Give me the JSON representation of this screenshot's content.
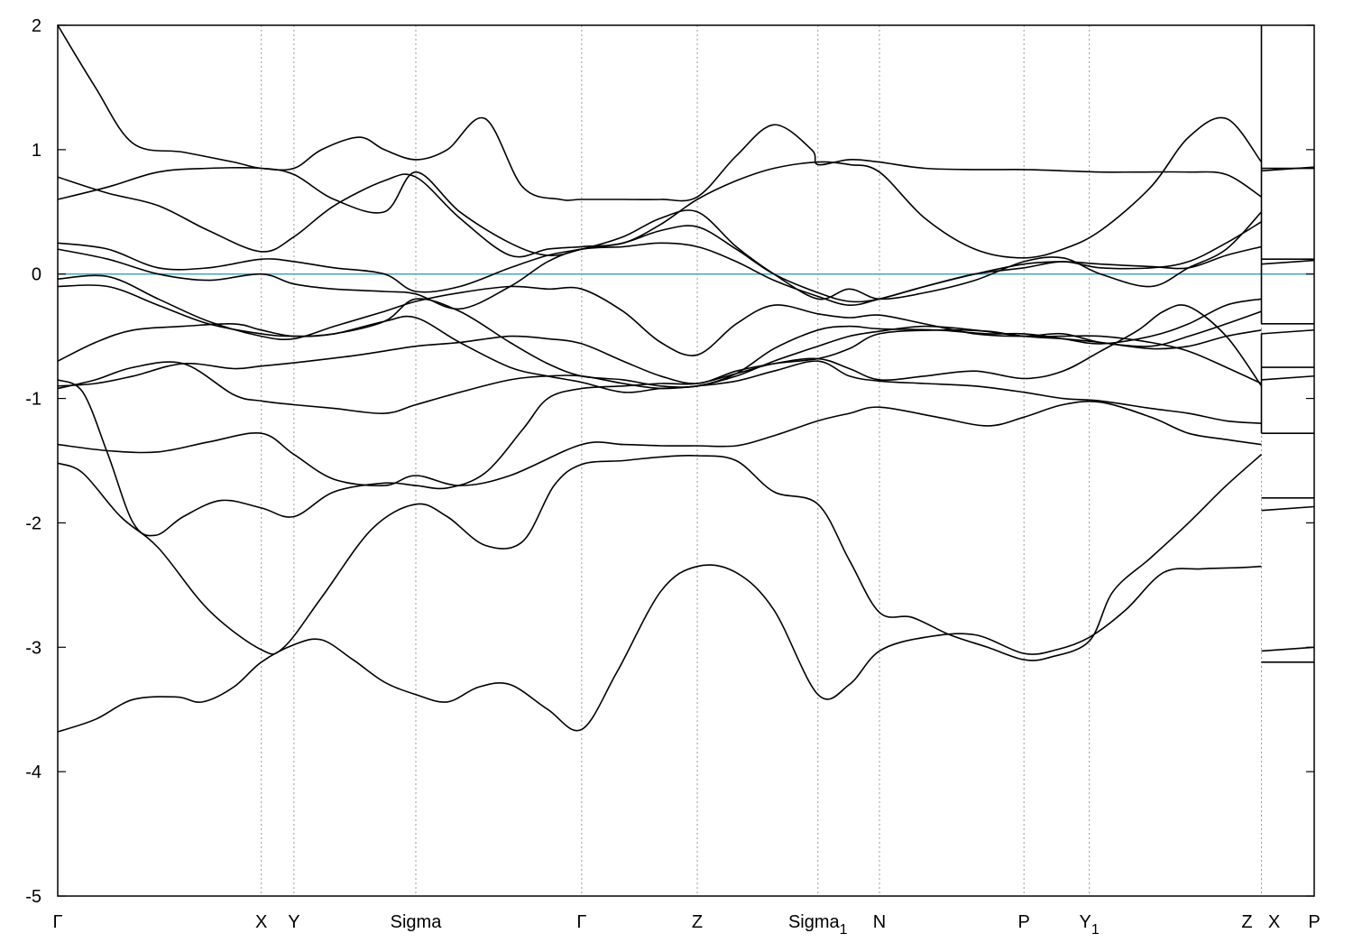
{
  "chart_data": {
    "type": "line",
    "title": "",
    "xlabel": "",
    "ylabel": "",
    "ylim": [
      -5,
      2
    ],
    "y_ticks": [
      "2",
      "1",
      "0",
      "-1",
      "-2",
      "-3",
      "-4",
      "-5"
    ],
    "y_tick_values": [
      2,
      1,
      0,
      -1,
      -2,
      -3,
      -4,
      -5
    ],
    "x_range": [
      0,
      1
    ],
    "k_points": [
      {
        "label": "Γ",
        "sub": "",
        "x": 0.0
      },
      {
        "label": "X",
        "sub": "",
        "x": 0.162
      },
      {
        "label": "Y",
        "sub": "",
        "x": 0.188
      },
      {
        "label": "Sigma",
        "sub": "",
        "x": 0.285
      },
      {
        "label": "Γ",
        "sub": "",
        "x": 0.417
      },
      {
        "label": "Z",
        "sub": "",
        "x": 0.509
      },
      {
        "label": "Sigma",
        "sub": "1",
        "x": 0.605
      },
      {
        "label": "N",
        "sub": "",
        "x": 0.654
      },
      {
        "label": "P",
        "sub": "",
        "x": 0.769
      },
      {
        "label": "Y",
        "sub": "1",
        "x": 0.821
      },
      {
        "label": "Z",
        "sub": "",
        "x": 0.958
      },
      {
        "label": "X",
        "sub": "",
        "x": 0.958
      },
      {
        "label": "P",
        "sub": "",
        "x": 1.0
      }
    ],
    "fermi_level": 0,
    "grid": "vertical dotted lines at k-points",
    "colors": {
      "bands": "#000000",
      "fermi": "#4aa8c0",
      "grid": "#999999"
    },
    "series": [
      {
        "x": [
          0.0,
          0.03,
          0.06,
          0.095,
          0.115,
          0.14,
          0.162,
          0.188,
          0.21,
          0.235,
          0.26,
          0.285,
          0.31,
          0.335,
          0.36,
          0.39,
          0.417,
          0.445,
          0.48,
          0.509,
          0.54,
          0.57,
          0.605,
          0.63,
          0.654,
          0.69,
          0.73,
          0.769,
          0.795,
          0.821,
          0.85,
          0.88,
          0.91,
          0.94,
          0.958
        ],
        "y": [
          -3.68,
          -3.58,
          -3.42,
          -3.4,
          -3.44,
          -3.32,
          -3.12,
          -2.98,
          -2.94,
          -3.1,
          -3.28,
          -3.38,
          -3.44,
          -3.32,
          -3.3,
          -3.5,
          -3.66,
          -3.2,
          -2.55,
          -2.35,
          -2.4,
          -2.7,
          -3.38,
          -3.3,
          -3.03,
          -2.92,
          -2.9,
          -3.05,
          -3.02,
          -2.92,
          -2.7,
          -2.4,
          -2.37,
          -2.36,
          -2.35
        ]
      },
      {
        "x": [
          0.0,
          0.02,
          0.05,
          0.08,
          0.12,
          0.162,
          0.18,
          0.21,
          0.25,
          0.285,
          0.31,
          0.34,
          0.37,
          0.395,
          0.417,
          0.45,
          0.48,
          0.509,
          0.54,
          0.57,
          0.605,
          0.63,
          0.654,
          0.68,
          0.71,
          0.74,
          0.769,
          0.79,
          0.821,
          0.84,
          0.87,
          0.9,
          0.93,
          0.958
        ],
        "y": [
          -1.52,
          -1.6,
          -1.95,
          -2.2,
          -2.7,
          -3.02,
          -3.0,
          -2.6,
          -2.05,
          -1.85,
          -1.95,
          -2.18,
          -2.15,
          -1.7,
          -1.53,
          -1.5,
          -1.47,
          -1.46,
          -1.5,
          -1.75,
          -1.85,
          -2.3,
          -2.72,
          -2.76,
          -2.9,
          -3.0,
          -3.1,
          -3.08,
          -2.95,
          -2.55,
          -2.28,
          -2.0,
          -1.7,
          -1.45
        ]
      },
      {
        "x": [
          0.0,
          0.02,
          0.04,
          0.06,
          0.078,
          0.1,
          0.13,
          0.162,
          0.188,
          0.22,
          0.26,
          0.285,
          0.31,
          0.34,
          0.37,
          0.39,
          0.417,
          0.45,
          0.48,
          0.509,
          0.54,
          0.57,
          0.605,
          0.63,
          0.654,
          0.69,
          0.73,
          0.769,
          0.8,
          0.83,
          0.86,
          0.88,
          0.9,
          0.93,
          0.958
        ],
        "y": [
          -0.85,
          -0.95,
          -1.45,
          -2.0,
          -2.1,
          -1.95,
          -1.82,
          -1.88,
          -1.95,
          -1.75,
          -1.68,
          -1.7,
          -1.72,
          -1.6,
          -1.25,
          -1.0,
          -0.92,
          -0.9,
          -0.88,
          -0.88,
          -0.8,
          -0.72,
          -0.68,
          -0.76,
          -0.85,
          -0.82,
          -0.78,
          -0.84,
          -0.78,
          -0.62,
          -0.45,
          -0.3,
          -0.26,
          -0.5,
          -0.9
        ]
      },
      {
        "x": [
          0.0,
          0.04,
          0.08,
          0.12,
          0.162,
          0.188,
          0.22,
          0.26,
          0.285,
          0.32,
          0.36,
          0.417,
          0.45,
          0.48,
          0.509,
          0.54,
          0.57,
          0.605,
          0.63,
          0.654,
          0.7,
          0.74,
          0.769,
          0.8,
          0.83,
          0.87,
          0.9,
          0.93,
          0.958
        ],
        "y": [
          -1.37,
          -1.42,
          -1.43,
          -1.35,
          -1.28,
          -1.45,
          -1.65,
          -1.7,
          -1.62,
          -1.7,
          -1.62,
          -1.37,
          -1.37,
          -1.38,
          -1.38,
          -1.38,
          -1.3,
          -1.18,
          -1.12,
          -1.07,
          -1.15,
          -1.22,
          -1.15,
          -1.05,
          -1.03,
          -1.15,
          -1.28,
          -1.33,
          -1.37
        ]
      },
      {
        "x": [
          0.0,
          0.03,
          0.06,
          0.1,
          0.14,
          0.162,
          0.188,
          0.22,
          0.26,
          0.285,
          0.32,
          0.36,
          0.39,
          0.417,
          0.45,
          0.48,
          0.509,
          0.54,
          0.57,
          0.605,
          0.63,
          0.654,
          0.69,
          0.73,
          0.769,
          0.8,
          0.83,
          0.87,
          0.9,
          0.93,
          0.958
        ],
        "y": [
          -0.92,
          -0.85,
          -0.75,
          -0.72,
          -0.97,
          -1.02,
          -1.05,
          -1.08,
          -1.12,
          -1.05,
          -0.95,
          -0.85,
          -0.82,
          -0.82,
          -0.88,
          -0.92,
          -0.9,
          -0.86,
          -0.78,
          -0.7,
          -0.82,
          -0.86,
          -0.88,
          -0.9,
          -0.95,
          -1.0,
          -1.02,
          -1.08,
          -1.12,
          -1.18,
          -1.2
        ]
      },
      {
        "x": [
          0.0,
          0.03,
          0.06,
          0.1,
          0.14,
          0.162,
          0.2,
          0.24,
          0.285,
          0.32,
          0.36,
          0.39,
          0.417,
          0.45,
          0.48,
          0.509,
          0.54,
          0.57,
          0.605,
          0.63,
          0.654,
          0.7,
          0.74,
          0.769,
          0.8,
          0.83,
          0.87,
          0.9,
          0.93,
          0.958
        ],
        "y": [
          -0.9,
          -0.88,
          -0.82,
          -0.72,
          -0.76,
          -0.74,
          -0.7,
          -0.65,
          -0.58,
          -0.55,
          -0.5,
          -0.52,
          -0.56,
          -0.7,
          -0.82,
          -0.88,
          -0.78,
          -0.72,
          -0.68,
          -0.6,
          -0.48,
          -0.45,
          -0.46,
          -0.5,
          -0.5,
          -0.5,
          -0.55,
          -0.62,
          -0.75,
          -0.88
        ]
      },
      {
        "x": [
          0.0,
          0.03,
          0.06,
          0.1,
          0.14,
          0.162,
          0.188,
          0.22,
          0.26,
          0.285,
          0.32,
          0.36,
          0.39,
          0.417,
          0.45,
          0.48,
          0.509,
          0.54,
          0.57,
          0.605,
          0.63,
          0.654,
          0.7,
          0.74,
          0.769,
          0.8,
          0.83,
          0.87,
          0.9,
          0.93,
          0.958
        ],
        "y": [
          -0.7,
          -0.55,
          -0.45,
          -0.42,
          -0.4,
          -0.45,
          -0.5,
          -0.48,
          -0.38,
          -0.2,
          -0.3,
          -0.55,
          -0.72,
          -0.82,
          -0.85,
          -0.9,
          -0.9,
          -0.8,
          -0.6,
          -0.45,
          -0.42,
          -0.44,
          -0.45,
          -0.48,
          -0.48,
          -0.52,
          -0.56,
          -0.5,
          -0.4,
          -0.25,
          -0.2
        ]
      },
      {
        "x": [
          0.0,
          0.04,
          0.08,
          0.12,
          0.162,
          0.188,
          0.22,
          0.26,
          0.285,
          0.32,
          0.36,
          0.39,
          0.417,
          0.45,
          0.48,
          0.509,
          0.54,
          0.57,
          0.605,
          0.63,
          0.654,
          0.69,
          0.73,
          0.769,
          0.8,
          0.83,
          0.87,
          0.9,
          0.93,
          0.958
        ],
        "y": [
          -0.1,
          -0.1,
          -0.25,
          -0.4,
          -0.48,
          -0.5,
          -0.48,
          -0.38,
          -0.35,
          -0.55,
          -0.75,
          -0.82,
          -0.87,
          -0.95,
          -0.92,
          -0.9,
          -0.82,
          -0.7,
          -0.58,
          -0.5,
          -0.46,
          -0.42,
          -0.45,
          -0.5,
          -0.52,
          -0.55,
          -0.6,
          -0.58,
          -0.5,
          -0.45
        ]
      },
      {
        "x": [
          0.0,
          0.04,
          0.08,
          0.12,
          0.162,
          0.188,
          0.22,
          0.26,
          0.285,
          0.32,
          0.36,
          0.39,
          0.417,
          0.45,
          0.48,
          0.509,
          0.54,
          0.57,
          0.605,
          0.63,
          0.654,
          0.69,
          0.73,
          0.769,
          0.8,
          0.83,
          0.87,
          0.9,
          0.93,
          0.958
        ],
        "y": [
          -0.04,
          -0.02,
          -0.2,
          -0.38,
          -0.5,
          -0.52,
          -0.42,
          -0.3,
          -0.22,
          -0.15,
          -0.1,
          -0.12,
          -0.12,
          -0.3,
          -0.55,
          -0.65,
          -0.4,
          -0.25,
          -0.32,
          -0.35,
          -0.33,
          -0.4,
          -0.48,
          -0.5,
          -0.48,
          -0.55,
          -0.58,
          -0.5,
          -0.4,
          -0.3
        ]
      },
      {
        "x": [
          0.0,
          0.04,
          0.08,
          0.12,
          0.162,
          0.188,
          0.22,
          0.26,
          0.285,
          0.32,
          0.36,
          0.39,
          0.417,
          0.45,
          0.48,
          0.509,
          0.54,
          0.57,
          0.605,
          0.63,
          0.654,
          0.69,
          0.73,
          0.769,
          0.8,
          0.83,
          0.87,
          0.9,
          0.93,
          0.958
        ],
        "y": [
          0.2,
          0.12,
          0.0,
          -0.05,
          0.0,
          -0.08,
          -0.12,
          -0.14,
          -0.16,
          -0.28,
          -0.1,
          0.1,
          0.2,
          0.22,
          0.25,
          0.22,
          0.1,
          -0.05,
          -0.18,
          -0.25,
          -0.2,
          -0.1,
          0.0,
          0.08,
          0.1,
          0.08,
          0.06,
          0.05,
          0.15,
          0.22
        ]
      },
      {
        "x": [
          0.0,
          0.04,
          0.08,
          0.12,
          0.162,
          0.188,
          0.22,
          0.26,
          0.285,
          0.32,
          0.36,
          0.39,
          0.417,
          0.45,
          0.48,
          0.509,
          0.54,
          0.57,
          0.605,
          0.63,
          0.654,
          0.69,
          0.73,
          0.769,
          0.8,
          0.83,
          0.87,
          0.9,
          0.93,
          0.958
        ],
        "y": [
          0.25,
          0.2,
          0.05,
          0.05,
          0.12,
          0.1,
          0.05,
          0.0,
          -0.14,
          -0.1,
          0.05,
          0.15,
          0.2,
          0.25,
          0.35,
          0.38,
          0.2,
          0.0,
          -0.15,
          -0.22,
          -0.2,
          -0.1,
          0.0,
          0.05,
          0.1,
          0.05,
          0.05,
          0.1,
          0.25,
          0.42
        ]
      },
      {
        "x": [
          0.0,
          0.04,
          0.08,
          0.12,
          0.162,
          0.188,
          0.22,
          0.26,
          0.285,
          0.32,
          0.36,
          0.39,
          0.417,
          0.45,
          0.48,
          0.509,
          0.54,
          0.57,
          0.605,
          0.63,
          0.654,
          0.69,
          0.73,
          0.769,
          0.8,
          0.83,
          0.87,
          0.9,
          0.93,
          0.958
        ],
        "y": [
          0.6,
          0.7,
          0.82,
          0.85,
          0.85,
          0.8,
          0.6,
          0.5,
          0.82,
          0.5,
          0.25,
          0.15,
          0.2,
          0.3,
          0.45,
          0.5,
          0.22,
          0.0,
          -0.2,
          -0.12,
          -0.2,
          -0.15,
          -0.05,
          0.1,
          0.13,
          0.0,
          -0.1,
          0.05,
          0.2,
          0.5
        ]
      },
      {
        "x": [
          0.0,
          0.04,
          0.08,
          0.12,
          0.162,
          0.188,
          0.22,
          0.26,
          0.285,
          0.32,
          0.36,
          0.39,
          0.417,
          0.45,
          0.48,
          0.509,
          0.54,
          0.57,
          0.605,
          0.63,
          0.654,
          0.69,
          0.73,
          0.769,
          0.8,
          0.83,
          0.87,
          0.9,
          0.93,
          0.958
        ],
        "y": [
          0.78,
          0.65,
          0.55,
          0.35,
          0.18,
          0.3,
          0.55,
          0.75,
          0.78,
          0.45,
          0.15,
          0.2,
          0.22,
          0.25,
          0.4,
          0.6,
          0.75,
          0.85,
          0.9,
          0.88,
          0.82,
          0.45,
          0.2,
          0.13,
          0.2,
          0.35,
          0.7,
          1.1,
          1.25,
          0.9
        ]
      },
      {
        "x": [
          0.0,
          0.03,
          0.06,
          0.1,
          0.14,
          0.162,
          0.188,
          0.21,
          0.24,
          0.26,
          0.285,
          0.31,
          0.34,
          0.37,
          0.4,
          0.417,
          0.45,
          0.48,
          0.509,
          0.54,
          0.57,
          0.6,
          0.605,
          0.63,
          0.654,
          0.69,
          0.73,
          0.769,
          0.8,
          0.83,
          0.86,
          0.9,
          0.93,
          0.958
        ],
        "y": [
          2.0,
          1.5,
          1.05,
          0.98,
          0.9,
          0.85,
          0.85,
          1.0,
          1.1,
          1.0,
          0.92,
          1.0,
          1.25,
          0.7,
          0.6,
          0.6,
          0.6,
          0.6,
          0.62,
          0.95,
          1.2,
          1.0,
          0.88,
          0.92,
          0.9,
          0.85,
          0.84,
          0.84,
          0.83,
          0.82,
          0.82,
          0.82,
          0.8,
          0.62
        ]
      }
    ],
    "right_panel": {
      "x_range": [
        0.958,
        1.0
      ],
      "levels": [
        0.85,
        0.83,
        0.12,
        0.08,
        -0.4,
        -0.48,
        -0.75,
        -0.85,
        -1.28,
        -1.9,
        -1.8,
        -3.03,
        -3.12
      ]
    }
  }
}
